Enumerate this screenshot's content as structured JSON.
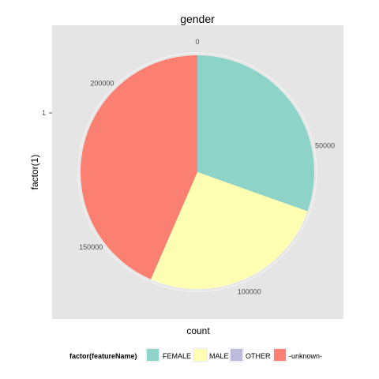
{
  "chart_data": {
    "type": "pie",
    "title": "gender",
    "xlabel": "count",
    "ylabel": "factor(1)",
    "y_tick_labels": [
      "1"
    ],
    "count_axis_ticks": [
      0,
      50000,
      100000,
      150000,
      200000
    ],
    "count_axis_tick_labels": [
      "0",
      "50000",
      "100000",
      "150000",
      "200000"
    ],
    "count_range": [
      0,
      230000
    ],
    "categories": [
      "FEMALE",
      "MALE",
      "OTHER",
      "-unknown-"
    ],
    "values": [
      70000,
      60000,
      0,
      100000
    ],
    "colors": {
      "FEMALE": "#8dd3c7",
      "MALE": "#ffffb3",
      "OTHER": "#bebada",
      "-unknown-": "#fb8072"
    },
    "panel_background": "#e5e5e5",
    "grid": true,
    "legend": {
      "title": "factor(featureName)",
      "position": "bottom"
    }
  }
}
